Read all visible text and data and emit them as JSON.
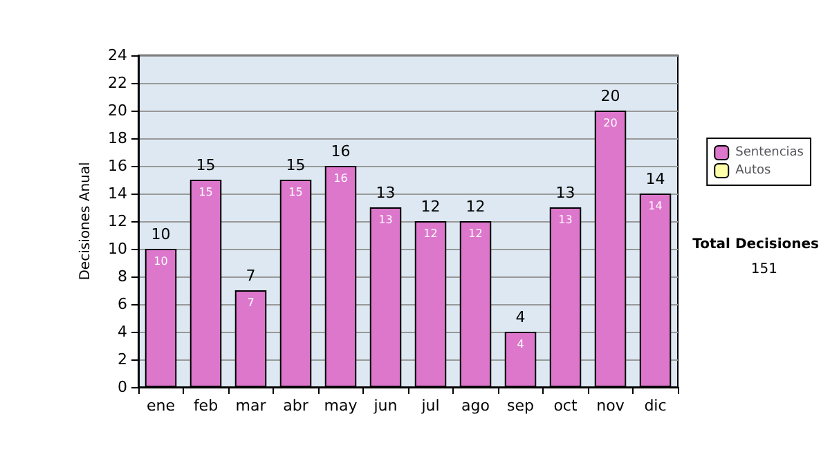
{
  "chart_data": {
    "type": "bar",
    "stacked": true,
    "ylabel": "Decisiones Anual",
    "categories": [
      "ene",
      "feb",
      "mar",
      "abr",
      "may",
      "jun",
      "jul",
      "ago",
      "sep",
      "oct",
      "nov",
      "dic"
    ],
    "series": [
      {
        "name": "Sentencias",
        "color": "#dd77cc",
        "values": [
          10,
          15,
          7,
          15,
          16,
          13,
          12,
          12,
          4,
          13,
          20,
          14
        ],
        "value_labels": [
          "10",
          "15",
          "7",
          "15",
          "16",
          "13",
          "12",
          "12",
          "4",
          "13",
          "20",
          "14"
        ]
      },
      {
        "name": "Autos",
        "color": "#ffffaa",
        "values": [
          0,
          0,
          0,
          0,
          0,
          0,
          0,
          0,
          0,
          0,
          0,
          0
        ]
      }
    ],
    "totals": [
      "10",
      "15",
      "7",
      "15",
      "16",
      "13",
      "12",
      "12",
      "4",
      "13",
      "20",
      "14"
    ],
    "ylim": [
      0,
      24
    ],
    "yticks": [
      0,
      2,
      4,
      6,
      8,
      10,
      12,
      14,
      16,
      18,
      20,
      22,
      24
    ],
    "grid": "y",
    "legend": "right",
    "annotations": [
      "Total Decisiones",
      "151"
    ]
  }
}
